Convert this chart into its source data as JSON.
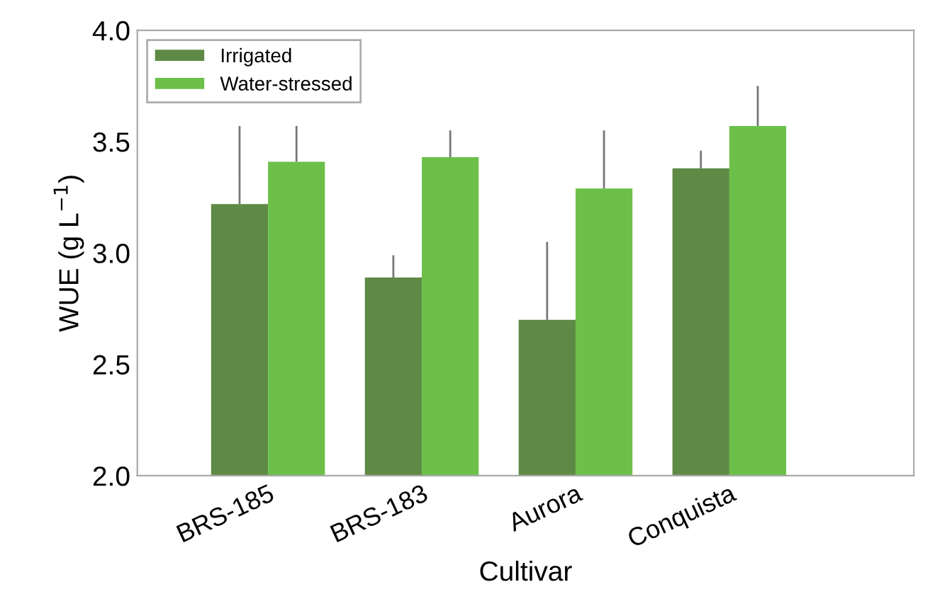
{
  "chart_data": {
    "type": "bar",
    "xlabel": "Cultivar",
    "ylabel": "WUE (g L$^{−1}$)",
    "categories": [
      "BRS-185",
      "BRS-183",
      "Aurora",
      "Conquista"
    ],
    "series": [
      {
        "name": "Irrigated",
        "color": "#5e8a45",
        "values": [
          3.22,
          2.89,
          2.7,
          3.38
        ],
        "errors": [
          [
            3.22,
            3.57
          ],
          [
            2.89,
            2.99
          ],
          [
            2.7,
            3.05
          ],
          [
            3.38,
            3.46
          ]
        ]
      },
      {
        "name": "Water-stressed",
        "color": "#6cc04a",
        "values": [
          3.41,
          3.43,
          3.29,
          3.57
        ],
        "errors": [
          [
            3.41,
            3.57
          ],
          [
            3.43,
            3.55
          ],
          [
            3.29,
            3.55
          ],
          [
            3.57,
            3.75
          ]
        ]
      }
    ],
    "ylim": [
      2.0,
      4.0
    ],
    "yticks": [
      {
        "value": 2.0,
        "label": "2.0"
      },
      {
        "value": 2.5,
        "label": "2.5"
      },
      {
        "value": 3.0,
        "label": "3.0"
      },
      {
        "value": 3.5,
        "label": "3.5"
      },
      {
        "value": 4.0,
        "label": "4.0"
      }
    ],
    "legend": "top left"
  }
}
